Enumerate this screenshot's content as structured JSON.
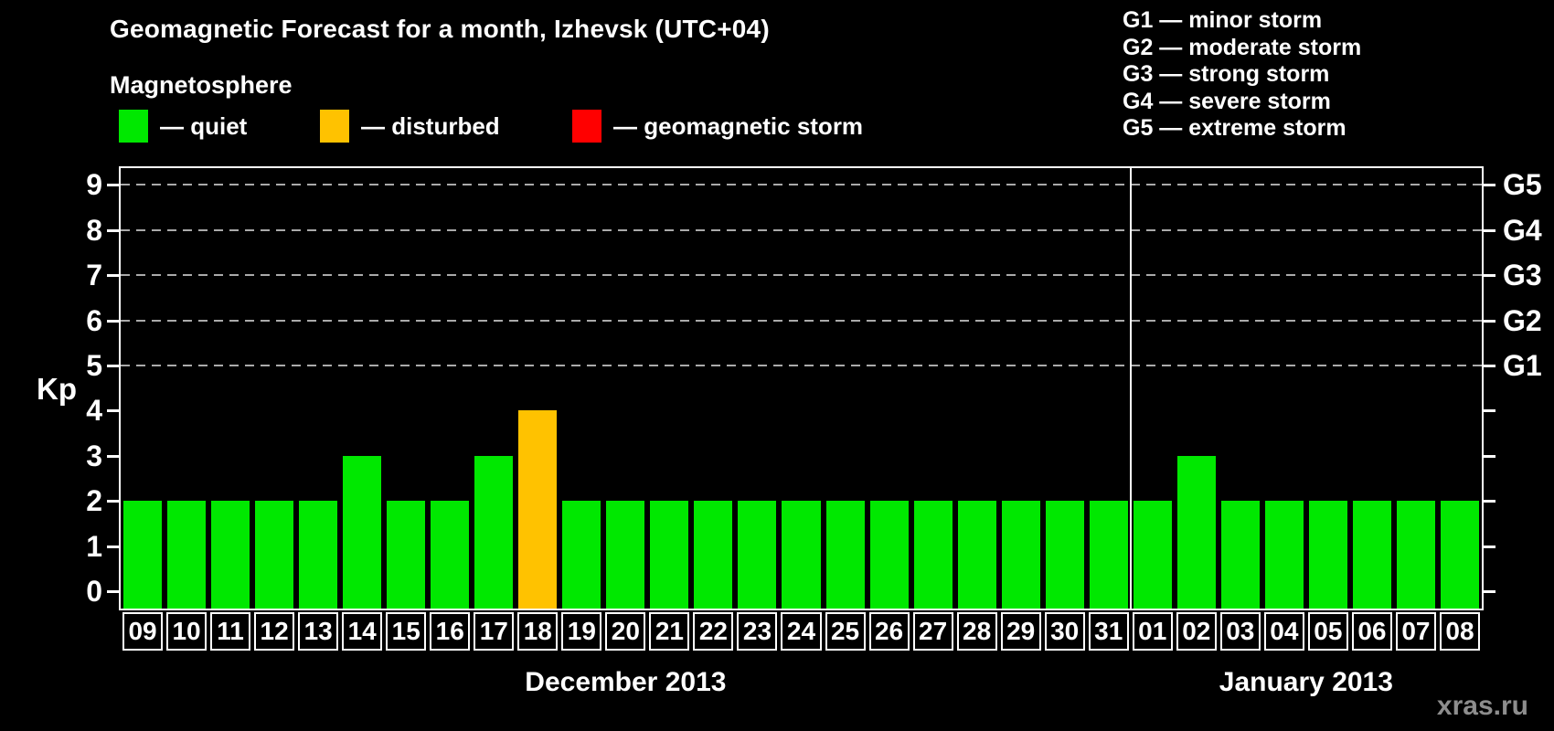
{
  "header": {
    "title": "Geomagnetic Forecast for a month, Izhevsk (UTC+04)",
    "subtitle": "Magnetosphere"
  },
  "legend": {
    "items": [
      {
        "id": "quiet",
        "label": "— quiet",
        "color": "#00e800"
      },
      {
        "id": "disturbed",
        "label": "— disturbed",
        "color": "#ffc200"
      },
      {
        "id": "storm",
        "label": "— geomagnetic storm",
        "color": "#ff0000"
      }
    ]
  },
  "g_scale": {
    "lines": [
      "G1 — minor storm",
      "G2 — moderate storm",
      "G3 — strong storm",
      "G4 — severe storm",
      "G5 — extreme storm"
    ]
  },
  "watermark": "xras.ru",
  "chart_data": {
    "type": "bar",
    "title": "Geomagnetic Forecast for a month, Izhevsk (UTC+04)",
    "ylabel": "Kp",
    "ylim": [
      0,
      9.4
    ],
    "y_ticks": [
      0,
      1,
      2,
      3,
      4,
      5,
      6,
      7,
      8,
      9
    ],
    "grid": "dashed-horizontal",
    "gridlines_at_kp": [
      5,
      6,
      7,
      8,
      9
    ],
    "right_axis_labels": [
      {
        "kp": 5,
        "label": "G1"
      },
      {
        "kp": 6,
        "label": "G2"
      },
      {
        "kp": 7,
        "label": "G3"
      },
      {
        "kp": 8,
        "label": "G4"
      },
      {
        "kp": 9,
        "label": "G5"
      }
    ],
    "categories": [
      "09",
      "10",
      "11",
      "12",
      "13",
      "14",
      "15",
      "16",
      "17",
      "18",
      "19",
      "20",
      "21",
      "22",
      "23",
      "24",
      "25",
      "26",
      "27",
      "28",
      "29",
      "30",
      "31",
      "01",
      "02",
      "03",
      "04",
      "05",
      "06",
      "07",
      "08"
    ],
    "values": [
      2,
      2,
      2,
      2,
      2,
      3,
      2,
      2,
      3,
      4,
      2,
      2,
      2,
      2,
      2,
      2,
      2,
      2,
      2,
      2,
      2,
      2,
      2,
      2,
      3,
      2,
      2,
      2,
      2,
      2,
      2
    ],
    "statuses": [
      "quiet",
      "quiet",
      "quiet",
      "quiet",
      "quiet",
      "quiet",
      "quiet",
      "quiet",
      "quiet",
      "disturbed",
      "quiet",
      "quiet",
      "quiet",
      "quiet",
      "quiet",
      "quiet",
      "quiet",
      "quiet",
      "quiet",
      "quiet",
      "quiet",
      "quiet",
      "quiet",
      "quiet",
      "quiet",
      "quiet",
      "quiet",
      "quiet",
      "quiet",
      "quiet",
      "quiet"
    ],
    "status_colors": {
      "quiet": "#00e800",
      "disturbed": "#ffc200",
      "storm": "#ff0000"
    },
    "months": [
      {
        "label": "December 2013",
        "day_count": 23
      },
      {
        "label": "January 2013",
        "day_count": 8
      }
    ],
    "legend_position": "top-left"
  }
}
